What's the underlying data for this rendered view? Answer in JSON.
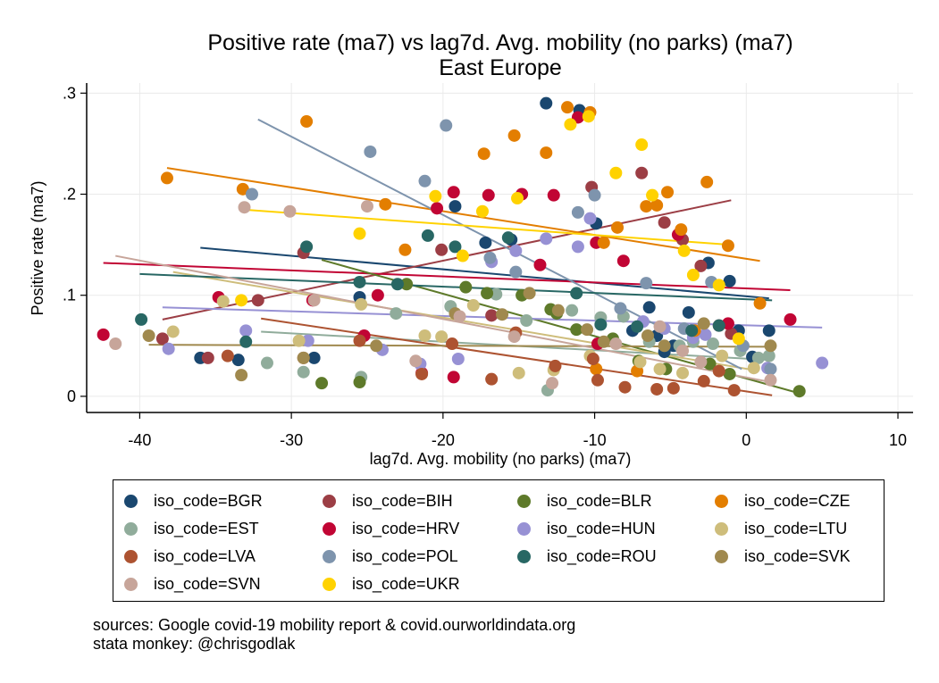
{
  "chart_data": {
    "type": "scatter",
    "title": "Positive rate (ma7) vs lag7d. Avg. mobility (no parks) (ma7)",
    "subtitle": "East Europe",
    "xlabel": "lag7d. Avg. mobility (no parks) (ma7)",
    "ylabel": "Positive rate (ma7)",
    "xlim": [
      -43.5,
      11
    ],
    "ylim": [
      -0.016,
      0.31
    ],
    "xticks": [
      -40,
      -30,
      -20,
      -10,
      0,
      10
    ],
    "xtick_labels": [
      "-40",
      "-30",
      "-20",
      "-10",
      "0",
      "10"
    ],
    "yticks": [
      0,
      0.1,
      0.2,
      0.3
    ],
    "ytick_labels": [
      "0",
      ".1",
      ".2",
      ".3"
    ],
    "grid": true,
    "legend_position": "bottom",
    "series": [
      {
        "name": "iso_code=BGR",
        "color": "#1a476f",
        "points": [
          [
            -36,
            0.038
          ],
          [
            -33.5,
            0.036
          ],
          [
            -28.5,
            0.038
          ],
          [
            -25.5,
            0.098
          ],
          [
            -19.2,
            0.188
          ],
          [
            -17.2,
            0.152
          ],
          [
            -15.5,
            0.155
          ],
          [
            -13.2,
            0.29
          ],
          [
            -11,
            0.283
          ],
          [
            -9.9,
            0.171
          ],
          [
            -7.5,
            0.065
          ],
          [
            -6.4,
            0.088
          ],
          [
            -5.9,
            0.06
          ],
          [
            -5.4,
            0.044
          ],
          [
            -4.8,
            0.05
          ],
          [
            -3.8,
            0.083
          ],
          [
            -2.5,
            0.132
          ],
          [
            -1.1,
            0.114
          ],
          [
            -0.5,
            0.065
          ],
          [
            0.4,
            0.039
          ],
          [
            1.5,
            0.065
          ]
        ],
        "fit": [
          [
            -36,
            0.147
          ],
          [
            1.5,
            0.097
          ]
        ]
      },
      {
        "name": "iso_code=EST",
        "color": "#90ac9b",
        "points": [
          [
            -29.2,
            0.024
          ],
          [
            -25.4,
            0.019
          ],
          [
            -23.1,
            0.082
          ],
          [
            -19.5,
            0.089
          ],
          [
            -16.5,
            0.101
          ],
          [
            -14.5,
            0.075
          ],
          [
            -13.1,
            0.006
          ],
          [
            -11.5,
            0.085
          ],
          [
            -9.6,
            0.078
          ],
          [
            -8.1,
            0.079
          ],
          [
            -6.4,
            0.054
          ],
          [
            -4.4,
            0.05
          ],
          [
            -3.5,
            0.054
          ],
          [
            -2.2,
            0.052
          ],
          [
            -0.4,
            0.045
          ],
          [
            0.8,
            0.038
          ],
          [
            1.5,
            0.04
          ],
          [
            -31.6,
            0.033
          ]
        ],
        "fit": [
          [
            -32,
            0.064
          ],
          [
            1.5,
            0.036
          ]
        ]
      },
      {
        "name": "iso_code=BIH",
        "color": "#9c3e45",
        "points": [
          [
            -38.5,
            0.057
          ],
          [
            -35.5,
            0.038
          ],
          [
            -32.2,
            0.095
          ],
          [
            -29.2,
            0.142
          ],
          [
            -20.1,
            0.145
          ],
          [
            -16.8,
            0.08
          ],
          [
            -10.2,
            0.207
          ],
          [
            -6.9,
            0.221
          ],
          [
            -5.4,
            0.172
          ],
          [
            -4.2,
            0.155
          ],
          [
            -3,
            0.129
          ],
          [
            -1.8,
            0.07
          ],
          [
            -1,
            0.062
          ]
        ],
        "fit": [
          [
            -38.5,
            0.076
          ],
          [
            -1,
            0.194
          ]
        ]
      },
      {
        "name": "iso_code=HRV",
        "color": "#c10534",
        "points": [
          [
            -42.4,
            0.061
          ],
          [
            -34.8,
            0.098
          ],
          [
            -28.6,
            0.095
          ],
          [
            -25.2,
            0.06
          ],
          [
            -24.3,
            0.1
          ],
          [
            -21.4,
            0.023
          ],
          [
            -20.4,
            0.186
          ],
          [
            -19.3,
            0.202
          ],
          [
            -17,
            0.199
          ],
          [
            -14.8,
            0.2
          ],
          [
            -13.6,
            0.13
          ],
          [
            -12.7,
            0.199
          ],
          [
            -11.1,
            0.276
          ],
          [
            -9.9,
            0.152
          ],
          [
            -8.1,
            0.134
          ],
          [
            -4.5,
            0.16
          ],
          [
            -1.2,
            0.072
          ],
          [
            2.9,
            0.076
          ],
          [
            -19.3,
            0.019
          ],
          [
            -9.8,
            0.052
          ]
        ],
        "fit": [
          [
            -42.4,
            0.132
          ],
          [
            2.9,
            0.105
          ]
        ]
      },
      {
        "name": "iso_code=BLR",
        "color": "#5e7a2a",
        "points": [
          [
            -28,
            0.013
          ],
          [
            -25.5,
            0.014
          ],
          [
            -22.4,
            0.111
          ],
          [
            -18.5,
            0.108
          ],
          [
            -14.8,
            0.1
          ],
          [
            -12.9,
            0.086
          ],
          [
            -11.2,
            0.066
          ],
          [
            -8.8,
            0.057
          ],
          [
            -7.1,
            0.035
          ],
          [
            -5.3,
            0.027
          ],
          [
            -2.4,
            0.032
          ],
          [
            -1.1,
            0.022
          ],
          [
            3.5,
            0.005
          ],
          [
            -17.1,
            0.102
          ],
          [
            -12.5,
            0.082
          ]
        ],
        "fit": [
          [
            -28,
            0.135
          ],
          [
            3.5,
            0.003
          ]
        ]
      },
      {
        "name": "iso_code=HUN",
        "color": "#9791d4",
        "points": [
          [
            -38.1,
            0.047
          ],
          [
            -33,
            0.065
          ],
          [
            -28.9,
            0.055
          ],
          [
            -24,
            0.046
          ],
          [
            -21.5,
            0.032
          ],
          [
            -19,
            0.037
          ],
          [
            -16.8,
            0.133
          ],
          [
            -15.2,
            0.144
          ],
          [
            -11.1,
            0.148
          ],
          [
            -10.3,
            0.176
          ],
          [
            -6.8,
            0.074
          ],
          [
            -5.4,
            0.067
          ],
          [
            -3.5,
            0.058
          ],
          [
            -2.7,
            0.061
          ],
          [
            1.4,
            0.028
          ],
          [
            5,
            0.033
          ],
          [
            -13.2,
            0.156
          ]
        ],
        "fit": [
          [
            -38.5,
            0.088
          ],
          [
            5,
            0.068
          ]
        ]
      },
      {
        "name": "iso_code=CZE",
        "color": "#e37e00",
        "points": [
          [
            -38.2,
            0.216
          ],
          [
            -33.2,
            0.205
          ],
          [
            -29,
            0.272
          ],
          [
            -23.8,
            0.19
          ],
          [
            -22.5,
            0.145
          ],
          [
            -17.3,
            0.24
          ],
          [
            -15.3,
            0.258
          ],
          [
            -13.2,
            0.241
          ],
          [
            -11.8,
            0.286
          ],
          [
            -10.3,
            0.281
          ],
          [
            -9.4,
            0.152
          ],
          [
            -8.5,
            0.167
          ],
          [
            -6.6,
            0.188
          ],
          [
            -5.9,
            0.189
          ],
          [
            -5.2,
            0.202
          ],
          [
            -4.3,
            0.165
          ],
          [
            -2.6,
            0.212
          ],
          [
            -1.2,
            0.149
          ],
          [
            0.9,
            0.092
          ],
          [
            -3.4,
            0.065
          ],
          [
            -7.2,
            0.025
          ],
          [
            -9.9,
            0.027
          ]
        ],
        "fit": [
          [
            -38.2,
            0.226
          ],
          [
            0.9,
            0.134
          ]
        ]
      },
      {
        "name": "iso_code=LTU",
        "color": "#cebd7b",
        "points": [
          [
            -37.8,
            0.064
          ],
          [
            -34.5,
            0.094
          ],
          [
            -29.5,
            0.055
          ],
          [
            -25.4,
            0.091
          ],
          [
            -20.1,
            0.059
          ],
          [
            -18,
            0.09
          ],
          [
            -15,
            0.023
          ],
          [
            -12.7,
            0.026
          ],
          [
            -10.3,
            0.04
          ],
          [
            -7,
            0.034
          ],
          [
            -5.7,
            0.027
          ],
          [
            -4.2,
            0.023
          ],
          [
            -1.6,
            0.04
          ],
          [
            0.5,
            0.028
          ],
          [
            -21.2,
            0.06
          ]
        ],
        "fit": [
          [
            -37.8,
            0.123
          ],
          [
            0.5,
            0.026
          ]
        ]
      },
      {
        "name": "iso_code=LVA",
        "color": "#ad5331",
        "points": [
          [
            -34.2,
            0.04
          ],
          [
            -29.2,
            0.038
          ],
          [
            -25.5,
            0.055
          ],
          [
            -21.4,
            0.022
          ],
          [
            -19.4,
            0.052
          ],
          [
            -15.2,
            0.063
          ],
          [
            -12.6,
            0.03
          ],
          [
            -9.8,
            0.016
          ],
          [
            -8,
            0.009
          ],
          [
            -5.9,
            0.007
          ],
          [
            -4.8,
            0.008
          ],
          [
            -2.8,
            0.015
          ],
          [
            -1.8,
            0.025
          ],
          [
            -0.8,
            0.006
          ],
          [
            -10.1,
            0.037
          ],
          [
            -16.8,
            0.017
          ]
        ],
        "fit": [
          [
            -32,
            0.077
          ],
          [
            1.7,
            0.001
          ]
        ]
      },
      {
        "name": "iso_code=POL",
        "color": "#7e94ad",
        "points": [
          [
            -32.6,
            0.2
          ],
          [
            -24.8,
            0.242
          ],
          [
            -21.2,
            0.213
          ],
          [
            -19.8,
            0.268
          ],
          [
            -16.9,
            0.137
          ],
          [
            -15.2,
            0.123
          ],
          [
            -11.1,
            0.182
          ],
          [
            -10,
            0.199
          ],
          [
            -8.3,
            0.087
          ],
          [
            -6.6,
            0.112
          ],
          [
            -4.1,
            0.067
          ],
          [
            -2.3,
            0.113
          ],
          [
            -0.2,
            0.05
          ],
          [
            1.6,
            0.027
          ]
        ],
        "fit": [
          [
            -32.2,
            0.274
          ],
          [
            -0.3,
            0.027
          ]
        ]
      },
      {
        "name": "iso_code=ROU",
        "color": "#286764",
        "points": [
          [
            -39.9,
            0.076
          ],
          [
            -33,
            0.054
          ],
          [
            -29,
            0.148
          ],
          [
            -25.5,
            0.113
          ],
          [
            -21,
            0.159
          ],
          [
            -19.2,
            0.148
          ],
          [
            -15.7,
            0.157
          ],
          [
            -11.2,
            0.102
          ],
          [
            -9.6,
            0.071
          ],
          [
            -7.2,
            0.069
          ],
          [
            -3.6,
            0.065
          ],
          [
            -1.8,
            0.07
          ],
          [
            -23,
            0.111
          ]
        ],
        "fit": [
          [
            -40,
            0.121
          ],
          [
            1.7,
            0.095
          ]
        ]
      },
      {
        "name": "iso_code=SVK",
        "color": "#a0894e",
        "points": [
          [
            -39.4,
            0.06
          ],
          [
            -33.3,
            0.021
          ],
          [
            -29.2,
            0.038
          ],
          [
            -24.4,
            0.05
          ],
          [
            -19.2,
            0.082
          ],
          [
            -16.1,
            0.081
          ],
          [
            -14.3,
            0.102
          ],
          [
            -12.4,
            0.085
          ],
          [
            -10.5,
            0.066
          ],
          [
            -9.4,
            0.054
          ],
          [
            -6.5,
            0.06
          ],
          [
            -5.4,
            0.05
          ],
          [
            -2.8,
            0.072
          ],
          [
            1.6,
            0.05
          ]
        ],
        "fit": [
          [
            -39.4,
            0.051
          ],
          [
            1.6,
            0.049
          ]
        ]
      },
      {
        "name": "iso_code=SVN",
        "color": "#c7a59a",
        "points": [
          [
            -41.6,
            0.052
          ],
          [
            -33.1,
            0.187
          ],
          [
            -30.1,
            0.183
          ],
          [
            -25,
            0.188
          ],
          [
            -21.8,
            0.035
          ],
          [
            -18.9,
            0.079
          ],
          [
            -15.3,
            0.059
          ],
          [
            -12.8,
            0.013
          ],
          [
            -8.6,
            0.052
          ],
          [
            -5.7,
            0.069
          ],
          [
            -4.2,
            0.045
          ],
          [
            -3,
            0.034
          ],
          [
            1.6,
            0.016
          ],
          [
            -28.5,
            0.095
          ]
        ],
        "fit": [
          [
            -41.6,
            0.139
          ],
          [
            1.6,
            0.014
          ]
        ]
      },
      {
        "name": "iso_code=UKR",
        "color": "#ffd200",
        "points": [
          [
            -33.3,
            0.095
          ],
          [
            -25.5,
            0.161
          ],
          [
            -20.5,
            0.198
          ],
          [
            -18.7,
            0.139
          ],
          [
            -17.4,
            0.183
          ],
          [
            -15.1,
            0.196
          ],
          [
            -11.6,
            0.269
          ],
          [
            -10.4,
            0.277
          ],
          [
            -8.6,
            0.221
          ],
          [
            -6.9,
            0.249
          ],
          [
            -6.2,
            0.199
          ],
          [
            -4.1,
            0.144
          ],
          [
            -3.5,
            0.12
          ],
          [
            -1.8,
            0.11
          ],
          [
            -0.5,
            0.057
          ]
        ],
        "fit": [
          [
            -33.4,
            0.185
          ],
          [
            -1.1,
            0.15
          ]
        ]
      }
    ]
  },
  "legend": {
    "items": [
      {
        "label": "iso_code=BGR",
        "color": "#1a476f"
      },
      {
        "label": "iso_code=BIH",
        "color": "#9c3e45"
      },
      {
        "label": "iso_code=BLR",
        "color": "#5e7a2a"
      },
      {
        "label": "iso_code=CZE",
        "color": "#e37e00"
      },
      {
        "label": "iso_code=EST",
        "color": "#90ac9b"
      },
      {
        "label": "iso_code=HRV",
        "color": "#c10534"
      },
      {
        "label": "iso_code=HUN",
        "color": "#9791d4"
      },
      {
        "label": "iso_code=LTU",
        "color": "#cebd7b"
      },
      {
        "label": "iso_code=LVA",
        "color": "#ad5331"
      },
      {
        "label": "iso_code=POL",
        "color": "#7e94ad"
      },
      {
        "label": "iso_code=ROU",
        "color": "#286764"
      },
      {
        "label": "iso_code=SVK",
        "color": "#a0894e"
      },
      {
        "label": "iso_code=SVN",
        "color": "#c7a59a"
      },
      {
        "label": "iso_code=UKR",
        "color": "#ffd200"
      }
    ]
  },
  "notes": {
    "line1": "sources: Google covid-19 mobility report & covid.ourworldindata.org",
    "line2": "stata monkey: @chrisgodlak"
  }
}
